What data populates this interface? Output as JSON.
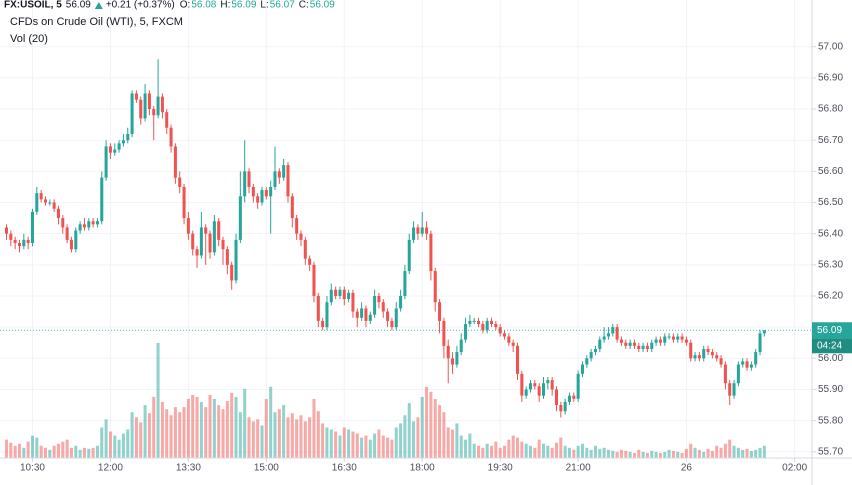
{
  "chart_data": {
    "type": "candlestick",
    "title": "CFDs on Crude Oil (WTI), 5, FXCM",
    "indicator": "Vol (20)",
    "header": {
      "symbol": "FX:USOIL, 5",
      "price": 56.09,
      "change": "+0.21 (+0.37%)",
      "quote": [
        {
          "key": "O:",
          "value": 56.08
        },
        {
          "key": "H:",
          "value": 56.09
        },
        {
          "key": "L:",
          "value": 56.07
        },
        {
          "key": "C:",
          "value": 56.09
        }
      ]
    },
    "last_price": {
      "value": 56.09,
      "label": "56.09"
    },
    "countdown": "04:24",
    "up_color": "#26a69a",
    "down_color": "#ef5350",
    "grid": true,
    "xlim": [
      -1.5,
      186
    ],
    "ylim": [
      55.68,
      57.15
    ],
    "xticks": [
      {
        "value": 6,
        "label": "10:30"
      },
      {
        "value": 24,
        "label": "12:00"
      },
      {
        "value": 42,
        "label": "13:30"
      },
      {
        "value": 60,
        "label": "15:00"
      },
      {
        "value": 78,
        "label": "16:30"
      },
      {
        "value": 96,
        "label": "18:00"
      },
      {
        "value": 114,
        "label": "19:30"
      },
      {
        "value": 132,
        "label": "21:00"
      },
      {
        "value": 157,
        "label": "26"
      },
      {
        "value": 182,
        "label": "02:00"
      }
    ],
    "yticks": [
      {
        "value": 55.7,
        "label": "55.70"
      },
      {
        "value": 55.8,
        "label": "55.80"
      },
      {
        "value": 55.9,
        "label": "55.90"
      },
      {
        "value": 56.0,
        "label": "56.00"
      },
      {
        "value": 56.1,
        "label": "56.10"
      },
      {
        "value": 56.2,
        "label": "56.20"
      },
      {
        "value": 56.3,
        "label": "56.30"
      },
      {
        "value": 56.4,
        "label": "56.40"
      },
      {
        "value": 56.5,
        "label": "56.50"
      },
      {
        "value": 56.6,
        "label": "56.60"
      },
      {
        "value": 56.7,
        "label": "56.70"
      },
      {
        "value": 56.8,
        "label": "56.80"
      },
      {
        "value": 56.9,
        "label": "56.90"
      },
      {
        "value": 57.0,
        "label": "57.00"
      }
    ],
    "open": [
      56.42,
      56.4,
      56.38,
      56.37,
      56.36,
      56.38,
      56.37,
      56.47,
      56.53,
      56.51,
      56.5,
      56.5,
      56.48,
      56.45,
      56.42,
      56.38,
      56.35,
      56.41,
      56.43,
      56.42,
      56.44,
      56.43,
      56.44,
      56.58,
      56.68,
      56.66,
      56.67,
      56.69,
      56.7,
      56.72,
      56.85,
      56.83,
      56.77,
      56.85,
      56.8,
      56.78,
      56.84,
      56.79,
      56.74,
      56.68,
      56.58,
      56.55,
      56.45,
      56.4,
      56.35,
      56.33,
      56.42,
      56.4,
      56.34,
      56.44,
      56.38,
      56.35,
      56.3,
      56.25,
      56.38,
      56.52,
      56.6,
      56.55,
      56.52,
      56.5,
      56.54,
      56.52,
      56.55,
      56.6,
      56.58,
      56.62,
      56.52,
      56.45,
      56.4,
      56.38,
      56.32,
      56.3,
      56.2,
      56.12,
      56.1,
      56.18,
      56.22,
      56.2,
      56.22,
      56.19,
      56.21,
      56.15,
      56.13,
      56.16,
      56.12,
      56.14,
      56.2,
      56.18,
      56.15,
      56.12,
      56.1,
      56.16,
      56.2,
      56.28,
      56.38,
      56.42,
      56.4,
      56.42,
      56.4,
      56.28,
      56.18,
      56.12,
      56.04,
      56.0,
      55.98,
      56.02,
      56.06,
      56.11,
      56.12,
      56.12,
      56.11,
      56.09,
      56.12,
      56.11,
      56.1,
      56.08,
      56.07,
      56.05,
      56.04,
      55.95,
      55.88,
      55.9,
      55.92,
      55.91,
      55.88,
      55.92,
      55.93,
      55.9,
      55.85,
      55.83,
      55.86,
      55.88,
      55.87,
      55.95,
      55.98,
      56.0,
      56.02,
      56.03,
      56.06,
      56.07,
      56.08,
      56.1,
      56.06,
      56.05,
      56.04,
      56.05,
      56.04,
      56.03,
      56.04,
      56.03,
      56.05,
      56.06,
      56.05,
      56.07,
      56.07,
      56.06,
      56.07,
      56.06,
      56.05,
      56.0,
      56.01,
      56.0,
      56.03,
      56.02,
      56.01,
      56.0,
      55.98,
      55.92,
      55.88,
      55.92,
      55.98,
      55.99,
      55.97,
      55.98,
      56.02,
      56.08
    ],
    "high": [
      56.43,
      56.41,
      56.39,
      56.38,
      56.4,
      56.39,
      56.48,
      56.55,
      56.54,
      56.52,
      56.51,
      56.51,
      56.49,
      56.46,
      56.43,
      56.39,
      56.42,
      56.44,
      56.45,
      56.45,
      56.45,
      56.45,
      56.6,
      56.7,
      56.69,
      56.69,
      56.7,
      56.72,
      56.74,
      56.86,
      56.86,
      56.84,
      56.88,
      56.86,
      56.81,
      56.96,
      56.85,
      56.8,
      56.75,
      56.69,
      56.6,
      56.56,
      56.47,
      56.41,
      56.36,
      56.47,
      56.43,
      56.41,
      56.46,
      56.45,
      56.39,
      56.36,
      56.31,
      56.4,
      56.6,
      56.7,
      56.61,
      56.56,
      56.53,
      56.55,
      56.55,
      56.57,
      56.68,
      56.61,
      56.64,
      56.63,
      56.53,
      56.46,
      56.41,
      56.39,
      56.33,
      56.31,
      56.21,
      56.13,
      56.2,
      56.24,
      56.23,
      56.23,
      56.23,
      56.22,
      56.22,
      56.16,
      56.18,
      56.17,
      56.15,
      56.22,
      56.21,
      56.19,
      56.16,
      56.13,
      56.18,
      56.22,
      56.3,
      56.4,
      56.44,
      56.43,
      56.47,
      56.44,
      56.41,
      56.29,
      56.19,
      56.13,
      56.06,
      56.02,
      56.04,
      56.08,
      56.13,
      56.14,
      56.13,
      56.13,
      56.12,
      56.13,
      56.13,
      56.12,
      56.11,
      56.09,
      56.08,
      56.06,
      56.05,
      55.96,
      55.91,
      55.93,
      55.93,
      55.92,
      55.94,
      55.94,
      55.94,
      55.91,
      55.86,
      55.87,
      55.89,
      55.89,
      55.96,
      55.99,
      56.01,
      56.03,
      56.04,
      56.07,
      56.1,
      56.1,
      56.11,
      56.11,
      56.07,
      56.06,
      56.06,
      56.06,
      56.05,
      56.05,
      56.05,
      56.06,
      56.07,
      56.07,
      56.08,
      56.08,
      56.08,
      56.08,
      56.08,
      56.07,
      56.06,
      56.02,
      56.02,
      56.04,
      56.04,
      56.03,
      56.02,
      56.01,
      55.99,
      55.93,
      55.93,
      55.99,
      56.0,
      56.0,
      55.99,
      56.03,
      56.09,
      56.09
    ],
    "low": [
      56.38,
      56.36,
      56.35,
      56.34,
      56.35,
      56.35,
      56.36,
      56.46,
      56.5,
      56.49,
      56.49,
      56.47,
      56.43,
      56.4,
      56.37,
      56.34,
      56.34,
      56.4,
      56.41,
      56.41,
      56.42,
      56.42,
      56.43,
      56.57,
      56.64,
      56.65,
      56.66,
      56.68,
      56.69,
      56.71,
      56.82,
      56.75,
      56.76,
      56.78,
      56.7,
      56.77,
      56.77,
      56.72,
      56.66,
      56.56,
      56.53,
      56.43,
      56.38,
      56.33,
      56.29,
      56.32,
      56.3,
      56.32,
      56.33,
      56.36,
      56.3,
      56.27,
      56.22,
      56.24,
      56.37,
      56.5,
      56.53,
      56.5,
      56.48,
      56.49,
      56.51,
      56.4,
      56.54,
      56.56,
      56.57,
      56.5,
      56.42,
      56.38,
      56.36,
      56.3,
      56.28,
      56.18,
      56.1,
      56.09,
      56.09,
      56.17,
      56.19,
      56.19,
      56.17,
      56.18,
      56.13,
      56.1,
      56.12,
      56.1,
      56.11,
      56.13,
      56.16,
      56.13,
      56.1,
      56.09,
      56.09,
      56.15,
      56.19,
      56.27,
      56.37,
      56.38,
      56.39,
      56.38,
      56.25,
      56.15,
      56.08,
      56.0,
      55.92,
      55.95,
      55.97,
      56.01,
      56.05,
      56.1,
      56.11,
      56.1,
      56.08,
      56.08,
      56.1,
      56.09,
      56.07,
      56.06,
      56.04,
      56.02,
      55.93,
      55.86,
      55.87,
      55.89,
      55.9,
      55.86,
      55.87,
      55.9,
      55.88,
      55.83,
      55.81,
      55.82,
      55.85,
      55.86,
      55.86,
      55.94,
      55.97,
      55.99,
      56.01,
      56.02,
      56.05,
      56.06,
      56.07,
      56.05,
      56.04,
      56.03,
      56.03,
      56.03,
      56.02,
      56.02,
      56.02,
      56.02,
      56.04,
      56.04,
      56.04,
      56.06,
      56.05,
      56.05,
      56.05,
      56.04,
      55.99,
      55.99,
      55.99,
      55.99,
      56.01,
      56.0,
      55.99,
      55.97,
      55.9,
      55.85,
      55.87,
      55.91,
      55.97,
      55.96,
      55.96,
      55.97,
      56.01,
      56.07
    ],
    "close": [
      56.4,
      56.38,
      56.37,
      56.36,
      56.38,
      56.37,
      56.47,
      56.53,
      56.51,
      56.5,
      56.5,
      56.48,
      56.45,
      56.42,
      56.38,
      56.35,
      56.41,
      56.43,
      56.42,
      56.44,
      56.43,
      56.44,
      56.58,
      56.68,
      56.66,
      56.67,
      56.69,
      56.7,
      56.72,
      56.85,
      56.83,
      56.77,
      56.85,
      56.8,
      56.78,
      56.84,
      56.79,
      56.74,
      56.68,
      56.58,
      56.55,
      56.45,
      56.4,
      56.35,
      56.33,
      56.42,
      56.4,
      56.34,
      56.44,
      56.38,
      56.35,
      56.3,
      56.25,
      56.38,
      56.52,
      56.6,
      56.55,
      56.52,
      56.5,
      56.54,
      56.52,
      56.55,
      56.6,
      56.58,
      56.62,
      56.52,
      56.45,
      56.4,
      56.38,
      56.32,
      56.3,
      56.2,
      56.12,
      56.1,
      56.18,
      56.22,
      56.2,
      56.22,
      56.19,
      56.21,
      56.15,
      56.13,
      56.16,
      56.12,
      56.14,
      56.2,
      56.18,
      56.15,
      56.12,
      56.1,
      56.16,
      56.2,
      56.28,
      56.38,
      56.42,
      56.4,
      56.42,
      56.4,
      56.28,
      56.18,
      56.12,
      56.04,
      56.0,
      55.98,
      56.02,
      56.06,
      56.11,
      56.12,
      56.12,
      56.11,
      56.09,
      56.12,
      56.11,
      56.1,
      56.08,
      56.07,
      56.05,
      56.04,
      55.95,
      55.88,
      55.9,
      55.92,
      55.91,
      55.88,
      55.92,
      55.93,
      55.9,
      55.85,
      55.83,
      55.86,
      55.88,
      55.87,
      55.95,
      55.98,
      56.0,
      56.02,
      56.03,
      56.06,
      56.07,
      56.08,
      56.1,
      56.06,
      56.05,
      56.04,
      56.05,
      56.04,
      56.03,
      56.04,
      56.03,
      56.05,
      56.06,
      56.05,
      56.07,
      56.07,
      56.06,
      56.07,
      56.06,
      56.05,
      56.0,
      56.01,
      56.0,
      56.03,
      56.02,
      56.01,
      56.0,
      55.98,
      55.92,
      55.88,
      55.92,
      55.98,
      55.99,
      55.97,
      55.98,
      56.02,
      56.08,
      56.09
    ],
    "volume": [
      18,
      15,
      12,
      14,
      10,
      16,
      22,
      20,
      12,
      10,
      8,
      12,
      14,
      16,
      18,
      10,
      12,
      8,
      10,
      9,
      10,
      12,
      30,
      38,
      26,
      22,
      18,
      24,
      28,
      45,
      40,
      35,
      52,
      44,
      60,
      113,
      55,
      48,
      42,
      50,
      45,
      50,
      58,
      62,
      60,
      55,
      50,
      62,
      58,
      52,
      48,
      56,
      64,
      60,
      45,
      68,
      40,
      36,
      38,
      32,
      58,
      70,
      45,
      48,
      52,
      40,
      44,
      38,
      42,
      36,
      40,
      58,
      46,
      34,
      30,
      28,
      26,
      22,
      30,
      28,
      26,
      24,
      20,
      22,
      18,
      24,
      28,
      22,
      20,
      18,
      30,
      34,
      42,
      54,
      36,
      40,
      60,
      70,
      65,
      58,
      52,
      45,
      30,
      28,
      34,
      22,
      18,
      24,
      14,
      12,
      10,
      14,
      12,
      16,
      10,
      12,
      18,
      22,
      20,
      16,
      14,
      12,
      10,
      18,
      14,
      12,
      10,
      15,
      20,
      12,
      10,
      8,
      12,
      14,
      10,
      8,
      12,
      9,
      10,
      8,
      7,
      6,
      8,
      7,
      6,
      5,
      8,
      6,
      5,
      7,
      6,
      5,
      6,
      8,
      7,
      6,
      5,
      9,
      14,
      10,
      8,
      6,
      9,
      7,
      12,
      10,
      14,
      18,
      12,
      10,
      8,
      9,
      7,
      8,
      10,
      12
    ]
  }
}
